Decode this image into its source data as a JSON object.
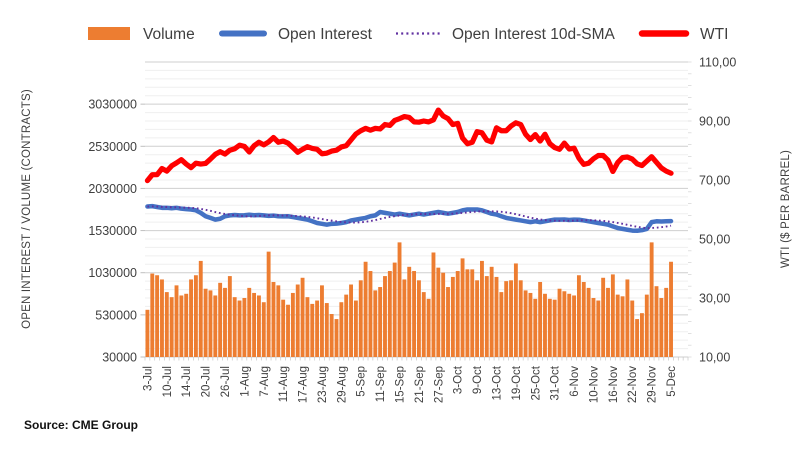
{
  "legend": {
    "items": [
      {
        "label": "Volume",
        "swatch": "bar",
        "color": "#ED7D31"
      },
      {
        "label": "Open Interest",
        "swatch": "line",
        "color": "#4472C4"
      },
      {
        "label": "Open Interest 10d-SMA",
        "swatch": "dotted-line",
        "color": "#6030A0"
      },
      {
        "label": "WTI",
        "swatch": "line",
        "color": "#FF0000"
      }
    ]
  },
  "axes": {
    "left_title": "OPEN INTEREST / VOLUME (CONTRACTS)",
    "right_title": "WTI ($ PER BARREL)",
    "left_ticks": [
      {
        "label": "3030000",
        "value": 3030000
      },
      {
        "label": "2530000",
        "value": 2530000
      },
      {
        "label": "2030000",
        "value": 2030000
      },
      {
        "label": "1530000",
        "value": 1530000
      },
      {
        "label": "1030000",
        "value": 1030000
      },
      {
        "label": "530000",
        "value": 530000
      },
      {
        "label": "30000",
        "value": 30000
      }
    ],
    "right_ticks": [
      {
        "label": "110,00",
        "value": 110
      },
      {
        "label": "90,00",
        "value": 90
      },
      {
        "label": "70,00",
        "value": 70
      },
      {
        "label": "50,00",
        "value": 50
      },
      {
        "label": "30,00",
        "value": 30
      },
      {
        "label": "10,00",
        "value": 10
      }
    ],
    "x_tick_labels": [
      "3-Jul",
      "10-Jul",
      "14-Jul",
      "20-Jul",
      "26-Jul",
      "1-Aug",
      "7-Aug",
      "11-Aug",
      "17-Aug",
      "23-Aug",
      "29-Aug",
      "5-Sep",
      "11-Sep",
      "15-Sep",
      "21-Sep",
      "27-Sep",
      "3-Oct",
      "9-Oct",
      "13-Oct",
      "19-Oct",
      "25-Oct",
      "31-Oct",
      "6-Nov",
      "10-Nov",
      "16-Nov",
      "22-Nov",
      "29-Nov",
      "5-Dec"
    ]
  },
  "source": "Source: CME Group",
  "chart_data": {
    "type": "combo",
    "x_label_every": 4,
    "left_axis": {
      "min": 30000,
      "max": 3530000,
      "major": 500000,
      "minor": 100000
    },
    "right_axis": {
      "min": 10,
      "max": 110,
      "major": 20
    },
    "grid": "on",
    "legend_position": "top",
    "x": [
      "3-Jul",
      "5-Jul",
      "6-Jul",
      "7-Jul",
      "10-Jul",
      "11-Jul",
      "12-Jul",
      "13-Jul",
      "14-Jul",
      "17-Jul",
      "18-Jul",
      "19-Jul",
      "20-Jul",
      "21-Jul",
      "24-Jul",
      "25-Jul",
      "26-Jul",
      "27-Jul",
      "28-Jul",
      "31-Jul",
      "1-Aug",
      "2-Aug",
      "3-Aug",
      "4-Aug",
      "7-Aug",
      "8-Aug",
      "9-Aug",
      "10-Aug",
      "11-Aug",
      "14-Aug",
      "15-Aug",
      "16-Aug",
      "17-Aug",
      "18-Aug",
      "21-Aug",
      "22-Aug",
      "23-Aug",
      "24-Aug",
      "25-Aug",
      "28-Aug",
      "29-Aug",
      "30-Aug",
      "31-Aug",
      "1-Sep",
      "5-Sep",
      "6-Sep",
      "7-Sep",
      "8-Sep",
      "11-Sep",
      "12-Sep",
      "13-Sep",
      "14-Sep",
      "15-Sep",
      "18-Sep",
      "19-Sep",
      "20-Sep",
      "21-Sep",
      "22-Sep",
      "25-Sep",
      "26-Sep",
      "27-Sep",
      "28-Sep",
      "29-Sep",
      "2-Oct",
      "3-Oct",
      "4-Oct",
      "5-Oct",
      "6-Oct",
      "9-Oct",
      "10-Oct",
      "11-Oct",
      "12-Oct",
      "13-Oct",
      "16-Oct",
      "17-Oct",
      "18-Oct",
      "19-Oct",
      "20-Oct",
      "23-Oct",
      "24-Oct",
      "25-Oct",
      "26-Oct",
      "27-Oct",
      "30-Oct",
      "31-Oct",
      "1-Nov",
      "2-Nov",
      "3-Nov",
      "6-Nov",
      "7-Nov",
      "8-Nov",
      "9-Nov",
      "10-Nov",
      "13-Nov",
      "14-Nov",
      "15-Nov",
      "16-Nov",
      "17-Nov",
      "20-Nov",
      "21-Nov",
      "22-Nov",
      "24-Nov",
      "27-Nov",
      "28-Nov",
      "29-Nov",
      "30-Nov",
      "1-Dec",
      "4-Dec",
      "5-Dec"
    ],
    "series": [
      {
        "name": "Volume",
        "type": "bar",
        "axis": "left",
        "color": "#ED7D31",
        "values": [
          590000,
          1020000,
          1000000,
          950000,
          800000,
          740000,
          880000,
          760000,
          780000,
          950000,
          1000000,
          1170000,
          840000,
          820000,
          760000,
          910000,
          850000,
          990000,
          740000,
          700000,
          730000,
          850000,
          790000,
          760000,
          680000,
          1280000,
          920000,
          880000,
          710000,
          650000,
          790000,
          890000,
          970000,
          740000,
          660000,
          700000,
          880000,
          670000,
          540000,
          480000,
          680000,
          770000,
          890000,
          700000,
          940000,
          1160000,
          1050000,
          820000,
          860000,
          990000,
          1050000,
          1150000,
          1390000,
          950000,
          1100000,
          1050000,
          940000,
          800000,
          720000,
          1270000,
          1090000,
          1030000,
          860000,
          980000,
          1050000,
          1200000,
          1070000,
          1070000,
          940000,
          1170000,
          990000,
          1100000,
          980000,
          800000,
          930000,
          940000,
          1140000,
          940000,
          820000,
          790000,
          720000,
          920000,
          780000,
          720000,
          710000,
          840000,
          810000,
          780000,
          760000,
          1000000,
          920000,
          850000,
          730000,
          700000,
          970000,
          850000,
          1010000,
          770000,
          750000,
          950000,
          700000,
          480000,
          550000,
          770000,
          1390000,
          870000,
          730000,
          850000,
          1160000
        ]
      },
      {
        "name": "Open Interest",
        "type": "line",
        "axis": "left",
        "color": "#4472C4",
        "values": [
          1815000,
          1820000,
          1810000,
          1800000,
          1800000,
          1795000,
          1800000,
          1790000,
          1785000,
          1780000,
          1770000,
          1740000,
          1700000,
          1680000,
          1660000,
          1670000,
          1700000,
          1710000,
          1715000,
          1710000,
          1712000,
          1718000,
          1712000,
          1715000,
          1710000,
          1705000,
          1708000,
          1700000,
          1698000,
          1700000,
          1690000,
          1680000,
          1670000,
          1660000,
          1640000,
          1620000,
          1610000,
          1600000,
          1610000,
          1612000,
          1620000,
          1630000,
          1650000,
          1660000,
          1670000,
          1680000,
          1700000,
          1710000,
          1750000,
          1740000,
          1730000,
          1720000,
          1730000,
          1720000,
          1710000,
          1720000,
          1730000,
          1720000,
          1730000,
          1740000,
          1750000,
          1740000,
          1730000,
          1740000,
          1750000,
          1770000,
          1780000,
          1780000,
          1780000,
          1770000,
          1750000,
          1730000,
          1720000,
          1700000,
          1680000,
          1670000,
          1660000,
          1650000,
          1640000,
          1630000,
          1640000,
          1630000,
          1640000,
          1650000,
          1660000,
          1660000,
          1662000,
          1655000,
          1660000,
          1658000,
          1650000,
          1640000,
          1630000,
          1620000,
          1610000,
          1600000,
          1580000,
          1560000,
          1550000,
          1540000,
          1530000,
          1528000,
          1535000,
          1550000,
          1630000,
          1640000,
          1638000,
          1640000,
          1642000
        ]
      },
      {
        "name": "Open Interest 10d-SMA",
        "type": "dotted-line",
        "axis": "left",
        "color": "#6030A0",
        "derived": "10-day trailing simple moving average of Open Interest"
      },
      {
        "name": "WTI",
        "type": "line",
        "axis": "right",
        "color": "#FF0000",
        "values": [
          69.8,
          71.8,
          71.8,
          73.9,
          73.0,
          74.8,
          75.8,
          76.9,
          75.4,
          74.2,
          75.7,
          75.4,
          75.6,
          77.1,
          78.7,
          79.6,
          78.8,
          80.1,
          80.6,
          81.8,
          81.4,
          79.5,
          81.6,
          82.8,
          81.9,
          82.9,
          84.4,
          82.8,
          83.2,
          82.5,
          81.0,
          79.4,
          80.4,
          81.3,
          80.7,
          80.4,
          78.9,
          79.1,
          79.8,
          80.1,
          81.2,
          81.6,
          83.6,
          85.6,
          86.7,
          87.5,
          86.9,
          87.5,
          87.3,
          88.8,
          88.5,
          90.2,
          90.8,
          91.5,
          91.2,
          89.7,
          89.6,
          90.0,
          89.7,
          90.4,
          93.7,
          91.7,
          90.8,
          88.8,
          89.2,
          84.2,
          82.3,
          82.8,
          86.4,
          86.0,
          83.5,
          82.9,
          87.7,
          86.7,
          86.7,
          88.3,
          89.4,
          88.8,
          85.5,
          83.7,
          85.4,
          83.2,
          85.5,
          82.3,
          81.0,
          80.4,
          82.5,
          80.5,
          80.8,
          77.4,
          75.3,
          75.7,
          77.2,
          78.3,
          78.3,
          76.7,
          72.9,
          75.9,
          77.6,
          77.8,
          77.1,
          75.5,
          74.9,
          76.4,
          77.9,
          76.0,
          74.1,
          73.0,
          72.3
        ]
      }
    ]
  }
}
